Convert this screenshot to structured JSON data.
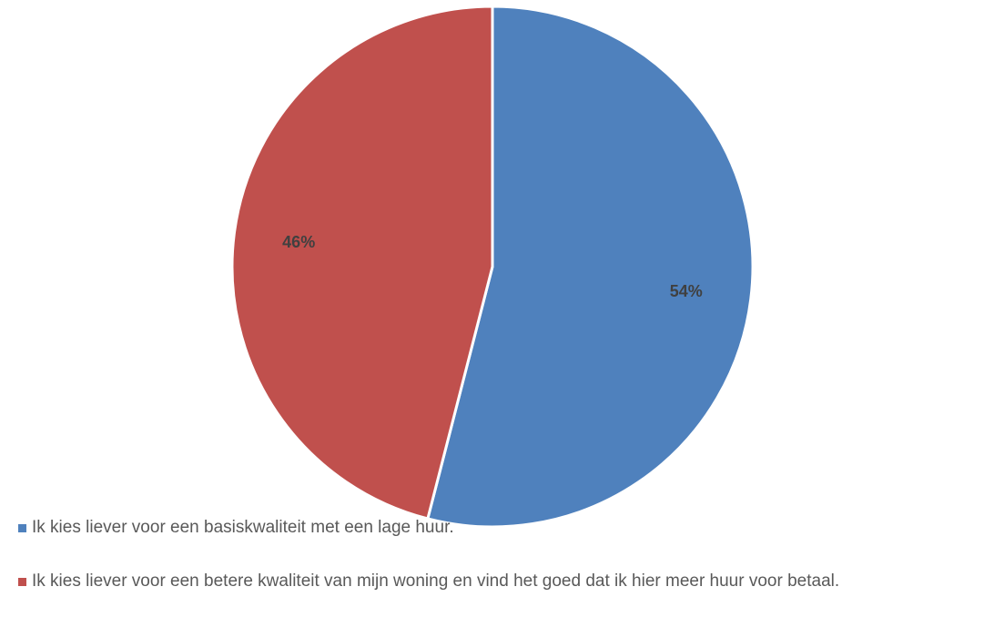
{
  "chart_data": {
    "type": "pie",
    "title": "",
    "slices": [
      {
        "label": "Ik kies liever voor een basiskwaliteit met een lage huur.",
        "value": 54,
        "display": "54%",
        "color": "#4F81BD"
      },
      {
        "label": "Ik kies liever voor een betere kwaliteit van mijn woning en vind het goed dat ik hier meer huur voor betaal.",
        "value": 46,
        "display": "46%",
        "color": "#C0504D"
      }
    ],
    "legend": {
      "position": "bottom-left"
    },
    "label_color": "#404040"
  }
}
